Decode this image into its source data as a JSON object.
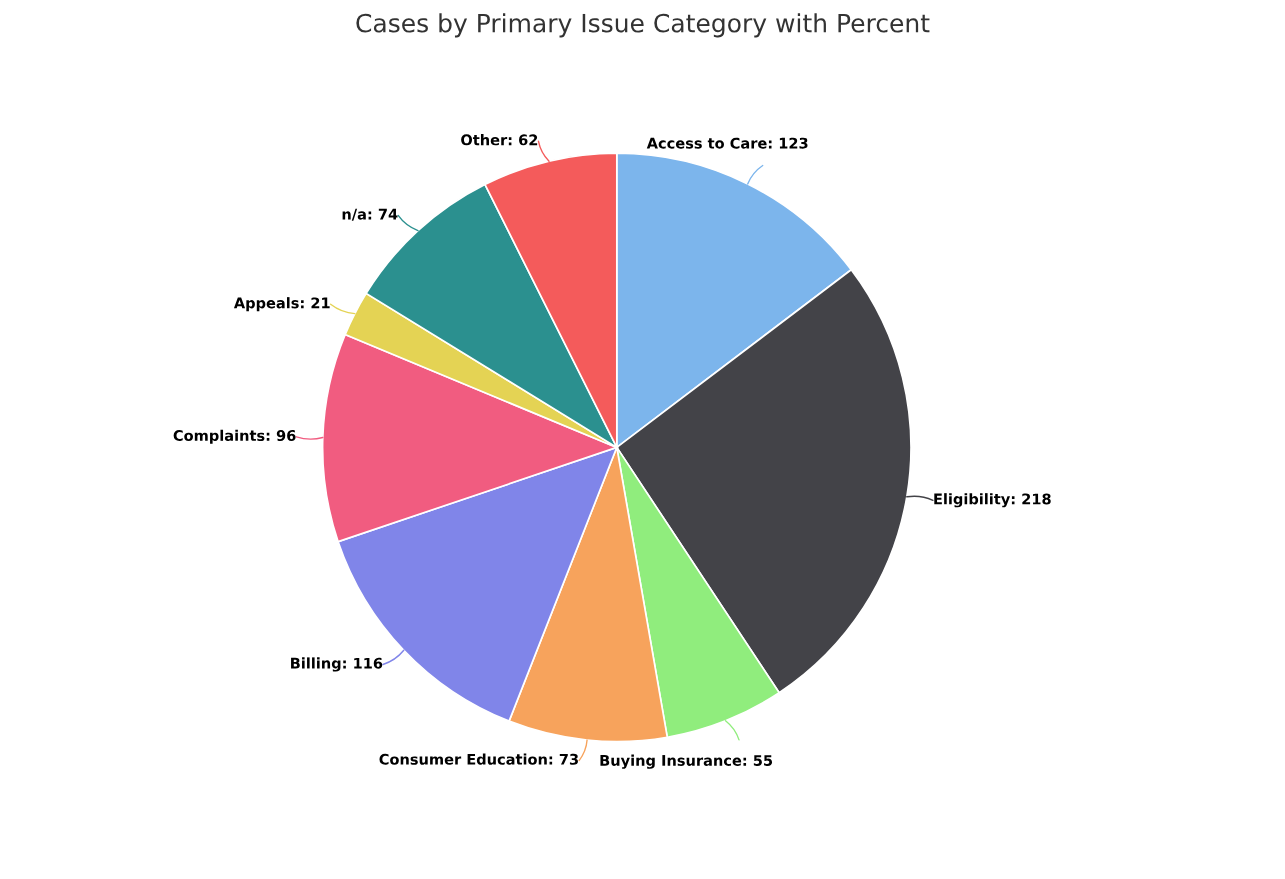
{
  "chart_data": {
    "type": "pie",
    "title": "Cases by Primary Issue Category with Percent",
    "categories": [
      "Access to Care",
      "Eligibility",
      "Buying Insurance",
      "Consumer Education",
      "Billing",
      "Complaints",
      "Appeals",
      "n/a",
      "Other"
    ],
    "values": [
      123,
      218,
      55,
      73,
      116,
      96,
      21,
      74,
      62
    ],
    "colors": [
      "#7cb5ec",
      "#434348",
      "#90ed7d",
      "#f7a35c",
      "#8085e9",
      "#f15c80",
      "#e4d354",
      "#2b908f",
      "#f45b5b"
    ],
    "value_labels": [
      ": 123",
      ": 218",
      ": 55",
      ": 73",
      ": 116",
      ": 96",
      ": 21",
      ": 74",
      ": 62"
    ]
  }
}
